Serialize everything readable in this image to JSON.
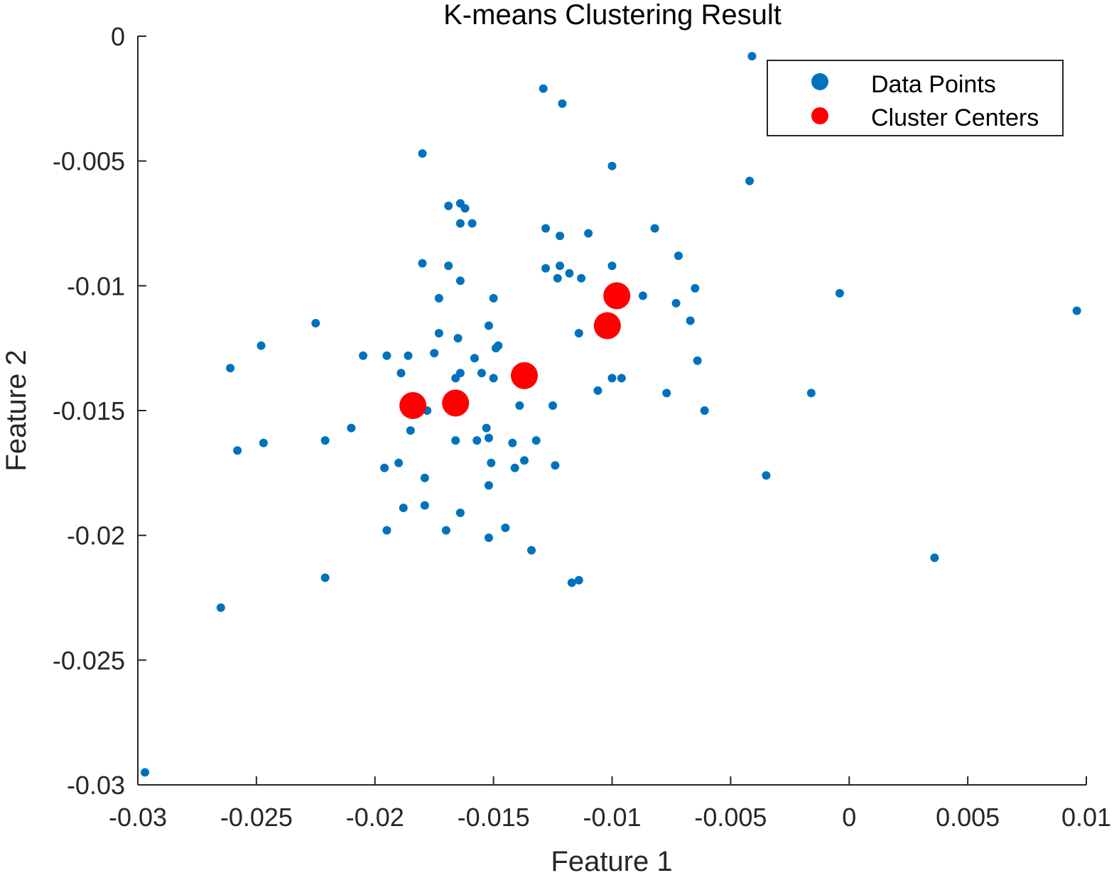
{
  "chart_data": {
    "type": "scatter",
    "title": "K-means Clustering Result",
    "xlabel": "Feature 1",
    "ylabel": "Feature 2",
    "xlim": [
      -0.03,
      0.01
    ],
    "ylim": [
      -0.03,
      0
    ],
    "xticks": [
      -0.03,
      -0.025,
      -0.02,
      -0.015,
      -0.01,
      -0.005,
      0,
      0.005,
      0.01
    ],
    "xtick_labels": [
      "-0.03",
      "-0.025",
      "-0.02",
      "-0.015",
      "-0.01",
      "-0.005",
      "0",
      "0.005",
      "0.01"
    ],
    "yticks": [
      0,
      -0.005,
      -0.01,
      -0.015,
      -0.02,
      -0.025,
      -0.03
    ],
    "ytick_labels": [
      "0",
      "-0.005",
      "-0.01",
      "-0.015",
      "-0.02",
      "-0.025",
      "-0.03"
    ],
    "grid": false,
    "legend_position": "top-right",
    "series": [
      {
        "name": "Data Points",
        "color": "#0072BD",
        "points": [
          [
            -0.0041,
            -0.0008
          ],
          [
            -0.0129,
            -0.0021
          ],
          [
            -0.0121,
            -0.0027
          ],
          [
            -0.018,
            -0.0047
          ],
          [
            -0.01,
            -0.0052
          ],
          [
            -0.0042,
            -0.0058
          ],
          [
            -0.0169,
            -0.0068
          ],
          [
            -0.0164,
            -0.0067
          ],
          [
            -0.0162,
            -0.0069
          ],
          [
            -0.0164,
            -0.0075
          ],
          [
            -0.0159,
            -0.0075
          ],
          [
            -0.0128,
            -0.0077
          ],
          [
            -0.0122,
            -0.008
          ],
          [
            -0.011,
            -0.0079
          ],
          [
            -0.0082,
            -0.0077
          ],
          [
            -0.0072,
            -0.0088
          ],
          [
            -0.018,
            -0.0091
          ],
          [
            -0.0169,
            -0.0092
          ],
          [
            -0.0128,
            -0.0093
          ],
          [
            -0.0122,
            -0.0092
          ],
          [
            -0.0118,
            -0.0095
          ],
          [
            -0.01,
            -0.0092
          ],
          [
            -0.0164,
            -0.0098
          ],
          [
            -0.0123,
            -0.0097
          ],
          [
            -0.0113,
            -0.0097
          ],
          [
            -0.0065,
            -0.0101
          ],
          [
            -0.0087,
            -0.0104
          ],
          [
            -0.0004,
            -0.0103
          ],
          [
            -0.0173,
            -0.0105
          ],
          [
            -0.015,
            -0.0105
          ],
          [
            -0.0073,
            -0.0107
          ],
          [
            -0.0067,
            -0.0114
          ],
          [
            -0.0225,
            -0.0115
          ],
          [
            -0.0152,
            -0.0116
          ],
          [
            0.0096,
            -0.011
          ],
          [
            -0.0173,
            -0.0119
          ],
          [
            -0.0165,
            -0.0121
          ],
          [
            -0.0114,
            -0.0119
          ],
          [
            -0.0248,
            -0.0124
          ],
          [
            -0.0148,
            -0.0124
          ],
          [
            -0.0149,
            -0.0125
          ],
          [
            -0.0175,
            -0.0127
          ],
          [
            -0.0205,
            -0.0128
          ],
          [
            -0.0195,
            -0.0128
          ],
          [
            -0.0186,
            -0.0128
          ],
          [
            -0.0158,
            -0.0129
          ],
          [
            -0.0064,
            -0.013
          ],
          [
            -0.0261,
            -0.0133
          ],
          [
            -0.0189,
            -0.0135
          ],
          [
            -0.0164,
            -0.0135
          ],
          [
            -0.0155,
            -0.0135
          ],
          [
            -0.0166,
            -0.0137
          ],
          [
            -0.015,
            -0.0137
          ],
          [
            -0.01,
            -0.0137
          ],
          [
            -0.0096,
            -0.0137
          ],
          [
            -0.0106,
            -0.0142
          ],
          [
            -0.0077,
            -0.0143
          ],
          [
            -0.0016,
            -0.0143
          ],
          [
            -0.0139,
            -0.0148
          ],
          [
            -0.0125,
            -0.0148
          ],
          [
            -0.0061,
            -0.015
          ],
          [
            -0.0178,
            -0.015
          ],
          [
            -0.021,
            -0.0157
          ],
          [
            -0.0185,
            -0.0158
          ],
          [
            -0.0153,
            -0.0157
          ],
          [
            -0.0221,
            -0.0162
          ],
          [
            -0.0247,
            -0.0163
          ],
          [
            -0.0166,
            -0.0162
          ],
          [
            -0.0157,
            -0.0162
          ],
          [
            -0.0152,
            -0.0161
          ],
          [
            -0.0142,
            -0.0163
          ],
          [
            -0.0132,
            -0.0162
          ],
          [
            -0.0258,
            -0.0166
          ],
          [
            -0.019,
            -0.0171
          ],
          [
            -0.0196,
            -0.0173
          ],
          [
            -0.0151,
            -0.0171
          ],
          [
            -0.0137,
            -0.017
          ],
          [
            -0.0141,
            -0.0173
          ],
          [
            -0.0124,
            -0.0172
          ],
          [
            -0.0035,
            -0.0176
          ],
          [
            -0.0179,
            -0.0177
          ],
          [
            -0.0152,
            -0.018
          ],
          [
            -0.0179,
            -0.0188
          ],
          [
            -0.0188,
            -0.0189
          ],
          [
            -0.0164,
            -0.0191
          ],
          [
            -0.0195,
            -0.0198
          ],
          [
            -0.017,
            -0.0198
          ],
          [
            -0.0145,
            -0.0197
          ],
          [
            -0.0152,
            -0.0201
          ],
          [
            -0.0134,
            -0.0206
          ],
          [
            0.0036,
            -0.0209
          ],
          [
            -0.0221,
            -0.0217
          ],
          [
            -0.0117,
            -0.0219
          ],
          [
            -0.0114,
            -0.0218
          ],
          [
            -0.0265,
            -0.0229
          ],
          [
            -0.0297,
            -0.0295
          ]
        ]
      },
      {
        "name": "Cluster Centers",
        "color": "#FF0000",
        "points": [
          [
            -0.0184,
            -0.0148
          ],
          [
            -0.0166,
            -0.0147
          ],
          [
            -0.0137,
            -0.0136
          ],
          [
            -0.0102,
            -0.0116
          ],
          [
            -0.0098,
            -0.0104
          ]
        ]
      }
    ]
  }
}
